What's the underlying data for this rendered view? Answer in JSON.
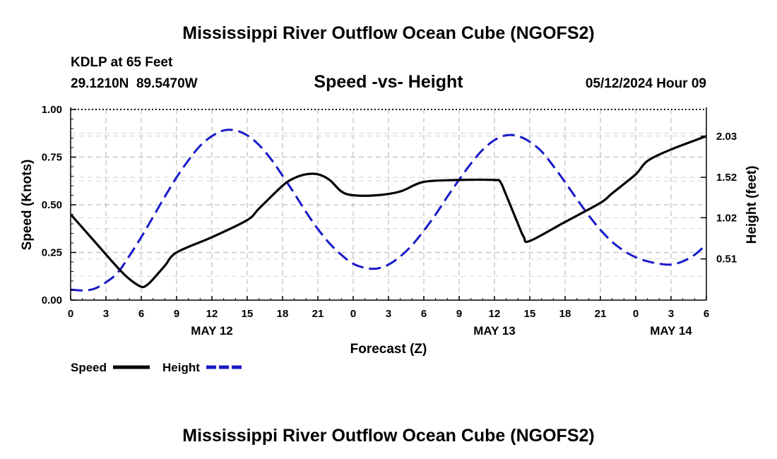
{
  "chart_data": {
    "type": "line",
    "title": "Mississippi River Outflow Ocean Cube (NGOFS2)",
    "footer_title": "Mississippi River Outflow Ocean Cube (NGOFS2)",
    "station": "KDLP at 65 Feet",
    "coordinates": "29.1210N  89.5470W",
    "subtitle": "Speed -vs- Height",
    "timestamp": "05/12/2024 Hour 09",
    "xlabel": "Forecast (Z)",
    "ylabel_left": "Speed (Knots)",
    "ylabel_right": "Height (feet)",
    "x_range_hours": [
      0,
      54
    ],
    "x_ticks": [
      {
        "hour": 0,
        "label": "0"
      },
      {
        "hour": 3,
        "label": "3"
      },
      {
        "hour": 6,
        "label": "6"
      },
      {
        "hour": 9,
        "label": "9"
      },
      {
        "hour": 12,
        "label": "12"
      },
      {
        "hour": 15,
        "label": "15"
      },
      {
        "hour": 18,
        "label": "18"
      },
      {
        "hour": 21,
        "label": "21"
      },
      {
        "hour": 24,
        "label": "0"
      },
      {
        "hour": 27,
        "label": "3"
      },
      {
        "hour": 30,
        "label": "6"
      },
      {
        "hour": 33,
        "label": "9"
      },
      {
        "hour": 36,
        "label": "12"
      },
      {
        "hour": 39,
        "label": "15"
      },
      {
        "hour": 42,
        "label": "18"
      },
      {
        "hour": 45,
        "label": "21"
      },
      {
        "hour": 48,
        "label": "0"
      },
      {
        "hour": 51,
        "label": "3"
      },
      {
        "hour": 54,
        "label": "6"
      }
    ],
    "date_labels": [
      {
        "hour": 12,
        "label": "MAY 12"
      },
      {
        "hour": 36,
        "label": "MAY 13"
      },
      {
        "hour": 51,
        "label": "MAY 14"
      }
    ],
    "ylim_left": [
      0,
      1.0
    ],
    "y_ticks_left": [
      {
        "value": 0.0,
        "label": "0.00"
      },
      {
        "value": 0.25,
        "label": "0.25"
      },
      {
        "value": 0.5,
        "label": "0.50"
      },
      {
        "value": 0.75,
        "label": "0.75"
      },
      {
        "value": 1.0,
        "label": "1.00"
      }
    ],
    "ylim_right": [
      0.0,
      2.36
    ],
    "y_ticks_right": [
      {
        "value": 0.51,
        "label": "0.51"
      },
      {
        "value": 1.02,
        "label": "1.02"
      },
      {
        "value": 1.52,
        "label": "1.52"
      },
      {
        "value": 2.03,
        "label": "2.03"
      }
    ],
    "series": [
      {
        "name": "Speed",
        "axis": "left",
        "color": "#000000",
        "style": "solid",
        "x": [
          0,
          2,
          4,
          5,
          6,
          6.5,
          7,
          8,
          9,
          12,
          15,
          16,
          18,
          19,
          20,
          21,
          22,
          23,
          24,
          26,
          28,
          30,
          33,
          36,
          36.5,
          37,
          38,
          38.5,
          39,
          42,
          45,
          46,
          48,
          49,
          51,
          54
        ],
        "values": [
          0.45,
          0.31,
          0.17,
          0.11,
          0.07,
          0.08,
          0.11,
          0.18,
          0.25,
          0.33,
          0.42,
          0.48,
          0.6,
          0.64,
          0.66,
          0.66,
          0.63,
          0.57,
          0.55,
          0.55,
          0.57,
          0.62,
          0.63,
          0.63,
          0.62,
          0.55,
          0.4,
          0.33,
          0.31,
          0.41,
          0.51,
          0.56,
          0.66,
          0.73,
          0.79,
          0.86
        ]
      },
      {
        "name": "Height",
        "axis": "right",
        "color": "#1a1ac8",
        "style": "dashed",
        "x": [
          0,
          1,
          2,
          3,
          4,
          5,
          6,
          7,
          8,
          9,
          10,
          11,
          12,
          13,
          14,
          15,
          16,
          17,
          18,
          19,
          20,
          21,
          22,
          23,
          24,
          25,
          26,
          27,
          28,
          29,
          30,
          31,
          32,
          33,
          34,
          35,
          36,
          37,
          38,
          39,
          40,
          41,
          42,
          43,
          44,
          45,
          46,
          47,
          48,
          49,
          50,
          51,
          52,
          53,
          54
        ],
        "values": [
          0.13,
          0.12,
          0.14,
          0.22,
          0.34,
          0.55,
          0.78,
          1.03,
          1.28,
          1.52,
          1.73,
          1.91,
          2.03,
          2.1,
          2.1,
          2.04,
          1.92,
          1.75,
          1.54,
          1.32,
          1.09,
          0.88,
          0.7,
          0.56,
          0.45,
          0.4,
          0.39,
          0.44,
          0.54,
          0.68,
          0.86,
          1.06,
          1.28,
          1.49,
          1.69,
          1.86,
          1.98,
          2.04,
          2.03,
          1.96,
          1.84,
          1.66,
          1.46,
          1.25,
          1.05,
          0.87,
          0.72,
          0.61,
          0.53,
          0.48,
          0.45,
          0.44,
          0.48,
          0.56,
          0.69
        ]
      }
    ],
    "legend": {
      "position": "bottom-left",
      "items": [
        {
          "label": "Speed",
          "color": "#000000",
          "style": "solid"
        },
        {
          "label": "Height",
          "color": "#1a1ac8",
          "style": "dashed"
        }
      ]
    },
    "grid": true
  }
}
